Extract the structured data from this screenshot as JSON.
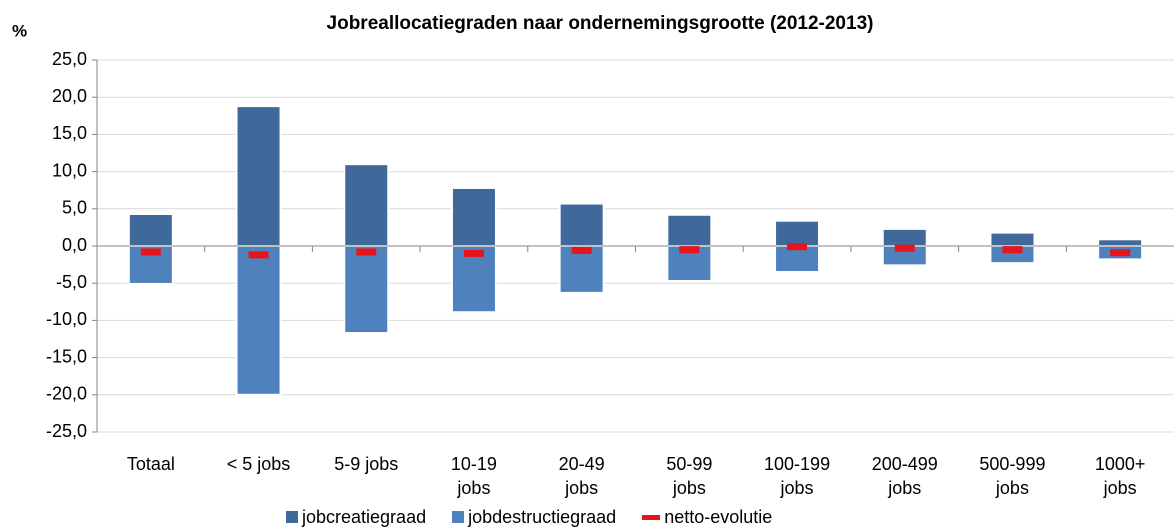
{
  "chart_data": {
    "type": "bar",
    "title": "Jobreallocatiegraden naar ondernemingsgrootte (2012-2013)",
    "y_label": "%",
    "categories": [
      "Totaal",
      "< 5 jobs",
      "5-9 jobs",
      "10-19 jobs",
      "20-49 jobs",
      "50-99 jobs",
      "100-199 jobs",
      "200-499 jobs",
      "500-999 jobs",
      "1000+ jobs"
    ],
    "series": [
      {
        "name": "jobcreatiegraad",
        "color": "#3f689b",
        "values": [
          4.3,
          18.8,
          11.0,
          7.8,
          5.7,
          4.2,
          3.4,
          2.3,
          1.8,
          0.9
        ]
      },
      {
        "name": "jobdestructiegraad",
        "color": "#4f81bd",
        "values": [
          -5.1,
          -20.0,
          -11.7,
          -8.9,
          -6.3,
          -4.7,
          -3.5,
          -2.6,
          -2.3,
          -1.8
        ]
      },
      {
        "name": "netto-evolutie",
        "color": "#e8141c",
        "marker": "dash",
        "values": [
          -0.8,
          -1.2,
          -0.8,
          -1.0,
          -0.6,
          -0.5,
          -0.1,
          -0.3,
          -0.5,
          -0.9
        ]
      }
    ],
    "ylim": [
      -25,
      25
    ],
    "yticks": [
      {
        "value": -25,
        "label": "-25,0"
      },
      {
        "value": -20,
        "label": "-20,0"
      },
      {
        "value": -15,
        "label": "-15,0"
      },
      {
        "value": -10,
        "label": "-10,0"
      },
      {
        "value": -5,
        "label": "-5,0"
      },
      {
        "value": 0,
        "label": "0,0"
      },
      {
        "value": 5,
        "label": "5,0"
      },
      {
        "value": 10,
        "label": "10,0"
      },
      {
        "value": 15,
        "label": "15,0"
      },
      {
        "value": 20,
        "label": "20,0"
      },
      {
        "value": 25,
        "label": "25,0"
      }
    ],
    "grid": true,
    "legend": "bottom"
  }
}
